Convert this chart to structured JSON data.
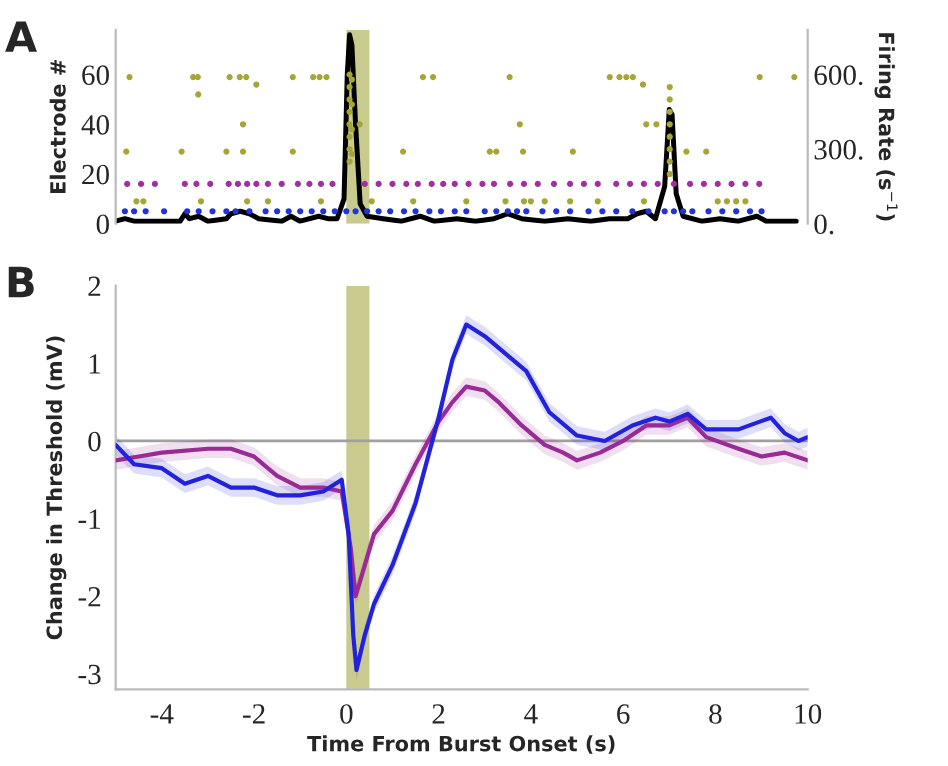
{
  "chart_data": [
    {
      "type": "scatter",
      "title": "A",
      "ylabel": "Electrode #",
      "y2label": "Firing Rate (s$^{−1}$)",
      "xlim": [
        -5,
        10
      ],
      "ylim": [
        0,
        78
      ],
      "yticks": [
        0,
        20,
        40,
        60
      ],
      "y2lim": [
        0,
        780
      ],
      "y2ticks": [
        {
          "value": 0,
          "label": "0."
        },
        {
          "value": 300,
          "label": "300."
        },
        {
          "value": 600,
          "label": "600."
        }
      ],
      "tick_labels": "y",
      "marker": "circle",
      "bands": [
        {
          "axis": "x",
          "from": 0,
          "to": 0.5,
          "color": "#c9ca8e"
        }
      ],
      "series": [
        {
          "type": "scatter",
          "color": "#a6a636",
          "x": [
            -4.7,
            -3.32,
            -3.22,
            -2.53,
            -2.31,
            -2.17,
            -1.16,
            -0.72,
            -0.58,
            -0.43,
            1.66,
            1.88,
            3.54,
            5.71,
            5.92,
            6.07,
            6.21,
            8.96,
            9.71,
            -4.77,
            -3.57,
            -2.6,
            -2.24,
            -1.16,
            1.23,
            3.11,
            3.25,
            3.83,
            4.91,
            7.37,
            7.8,
            -2.24,
            0.29,
            3.76,
            6.5,
            6.72,
            -3.21,
            -1.95,
            6.43,
            0.07,
            0.07,
            0.07,
            0.07,
            0.07,
            0.07,
            0.07,
            0.07,
            0.12,
            0.12,
            0.12,
            0.12,
            7.01,
            7.01,
            7.01,
            7.01,
            7.01,
            7.01,
            7.01,
            7.01,
            -4.55,
            -4.4,
            -3.15,
            -2.15,
            -1.7,
            -0.55,
            0.55,
            1.45,
            2.6,
            3.45,
            3.85,
            4.0,
            4.3,
            4.85,
            5.45,
            6.45,
            8.05,
            8.25,
            8.45,
            8.65
          ],
          "values": [
            59,
            59,
            59,
            59,
            59,
            59,
            59,
            59,
            59,
            59,
            59,
            59,
            59,
            59,
            59,
            59,
            59,
            59,
            59,
            29,
            29,
            29,
            29,
            29,
            29,
            29,
            29,
            29,
            29,
            29,
            29,
            40,
            40,
            40,
            40,
            40,
            52,
            56,
            56,
            25,
            30,
            35,
            40,
            45,
            50,
            55,
            60,
            28,
            38,
            48,
            58,
            20,
            25,
            30,
            35,
            40,
            45,
            50,
            55,
            9,
            9,
            9,
            9,
            9,
            9,
            9,
            9,
            9,
            9,
            9,
            9,
            9,
            9,
            9,
            9,
            9,
            9,
            9,
            9
          ]
        },
        {
          "type": "scatter",
          "color": "#a0309e",
          "x": [
            -4.75,
            -4.45,
            -4.15,
            -3.5,
            -3.25,
            -2.95,
            -2.55,
            -2.35,
            -2.15,
            -1.95,
            -1.7,
            -1.4,
            -1.05,
            -0.8,
            -0.55,
            -0.3,
            0.4,
            0.7,
            1.0,
            1.3,
            1.55,
            1.85,
            2.1,
            2.35,
            2.65,
            2.95,
            3.2,
            3.55,
            3.85,
            4.15,
            4.5,
            4.85,
            5.15,
            5.45,
            5.85,
            6.15,
            6.45,
            6.75,
            7.1,
            7.45,
            7.75,
            8.05,
            8.35,
            8.65,
            8.95
          ],
          "values": [
            16,
            16,
            16,
            16,
            16,
            16,
            16,
            16,
            16,
            16,
            16,
            16,
            16,
            16,
            16,
            16,
            16,
            16,
            16,
            16,
            16,
            16,
            16,
            16,
            16,
            16,
            16,
            16,
            16,
            16,
            16,
            16,
            16,
            16,
            16,
            16,
            16,
            16,
            16,
            16,
            16,
            16,
            16,
            16,
            16
          ]
        },
        {
          "type": "scatter",
          "color": "#2232d8",
          "x": [
            -4.8,
            -4.6,
            -4.35,
            -3.95,
            -3.45,
            -3.2,
            -2.9,
            -2.6,
            -2.4,
            -2.1,
            -1.75,
            -1.5,
            -1.25,
            -1.0,
            -0.75,
            -0.5,
            -0.25,
            0.0,
            0.2,
            0.45,
            0.7,
            0.95,
            1.25,
            1.5,
            1.8,
            2.05,
            2.35,
            2.6,
            3.0,
            3.25,
            3.5,
            3.7,
            3.9,
            4.25,
            4.55,
            4.85,
            5.25,
            5.55,
            5.85,
            6.2,
            6.55,
            6.9,
            7.1,
            7.3,
            7.5,
            7.85,
            8.15,
            8.45,
            8.75,
            9.0
          ],
          "values": [
            5,
            5,
            5,
            5,
            5,
            5,
            5,
            5,
            5,
            5,
            5,
            5,
            5,
            5,
            5,
            5,
            5,
            5,
            5,
            5,
            5,
            5,
            5,
            5,
            5,
            5,
            5,
            5,
            5,
            5,
            5,
            5,
            5,
            5,
            5,
            5,
            5,
            5,
            5,
            5,
            5,
            5,
            5,
            5,
            5,
            5,
            5,
            5,
            5,
            5
          ]
        },
        {
          "type": "line",
          "axis": "y2",
          "marker": "none",
          "color": "#000000",
          "x": [
            -5,
            -4.8,
            -4.6,
            -4.2,
            -3.6,
            -3.5,
            -3.4,
            -3.2,
            -3.0,
            -2.6,
            -2.5,
            -2.3,
            -2.1,
            -1.9,
            -1.4,
            -1.2,
            -1.0,
            -0.6,
            -0.4,
            -0.2,
            -0.05,
            0.02,
            0.07,
            0.12,
            0.2,
            0.3,
            0.45,
            0.8,
            1.2,
            1.6,
            1.9,
            2.4,
            2.8,
            3.2,
            3.5,
            3.8,
            4.3,
            4.8,
            5.3,
            5.7,
            6.1,
            6.3,
            6.5,
            6.7,
            6.9,
            7.0,
            7.06,
            7.15,
            7.3,
            7.7,
            8.1,
            8.5,
            8.9,
            9.1,
            9.5,
            9.75
          ],
          "values": [
            10,
            20,
            10,
            10,
            10,
            40,
            20,
            30,
            10,
            20,
            40,
            50,
            40,
            20,
            10,
            30,
            10,
            30,
            20,
            20,
            100,
            600,
            760,
            720,
            400,
            80,
            30,
            20,
            10,
            30,
            10,
            20,
            10,
            20,
            40,
            20,
            10,
            20,
            10,
            20,
            20,
            40,
            50,
            20,
            150,
            460,
            440,
            120,
            30,
            10,
            20,
            10,
            30,
            10,
            10,
            10
          ]
        }
      ]
    },
    {
      "type": "line",
      "title": "B",
      "xlabel": "Time From Burst Onset (s)",
      "ylabel": "Change in Threshold (mV)",
      "xlim": [
        -5,
        10
      ],
      "xticks": [
        -4,
        -2,
        0,
        2,
        4,
        6,
        8,
        10
      ],
      "ylim": [
        -3.2,
        2
      ],
      "yticks": [
        -3,
        -2,
        -1,
        0,
        1,
        2
      ],
      "line_style": "solid",
      "ref_lines": [
        {
          "axis": "y",
          "value": 0,
          "color": "#a0a0a0"
        }
      ],
      "bands": [
        {
          "axis": "x",
          "from": 0,
          "to": 0.5,
          "color": "#c9ca8e"
        }
      ],
      "series": [
        {
          "color": "#9a2a96",
          "x": [
            -5,
            -4.5,
            -4,
            -3,
            -2.5,
            -2,
            -1.5,
            -1,
            -0.5,
            -0.1,
            0.1,
            0.2,
            0.4,
            0.6,
            1,
            1.5,
            2,
            2.3,
            2.6,
            3,
            3.3,
            3.8,
            4.3,
            4.7,
            5.0,
            5.5,
            6.0,
            6.5,
            7.0,
            7.4,
            7.8,
            8.5,
            9.0,
            9.5,
            10
          ],
          "values": [
            -0.25,
            -0.2,
            -0.15,
            -0.1,
            -0.1,
            -0.2,
            -0.45,
            -0.6,
            -0.6,
            -0.65,
            -1.4,
            -2.0,
            -1.6,
            -1.2,
            -0.9,
            -0.3,
            0.25,
            0.5,
            0.7,
            0.65,
            0.5,
            0.2,
            -0.05,
            -0.15,
            -0.25,
            -0.15,
            0.0,
            0.2,
            0.2,
            0.3,
            0.05,
            -0.1,
            -0.2,
            -0.15,
            -0.25
          ],
          "lower": [
            -0.37,
            -0.32,
            -0.27,
            -0.22,
            -0.22,
            -0.32,
            -0.57,
            -0.72,
            -0.72,
            -0.77,
            -1.52,
            -2.12,
            -1.72,
            -1.32,
            -1.02,
            -0.42,
            0.13,
            0.38,
            0.58,
            0.53,
            0.38,
            0.08,
            -0.17,
            -0.27,
            -0.37,
            -0.27,
            -0.12,
            0.08,
            0.08,
            0.18,
            -0.07,
            -0.22,
            -0.32,
            -0.27,
            -0.37
          ],
          "upper": [
            -0.13,
            -0.08,
            -0.03,
            0.02,
            0.02,
            -0.08,
            -0.33,
            -0.48,
            -0.48,
            -0.53,
            -1.28,
            -1.88,
            -1.48,
            -1.08,
            -0.78,
            -0.18,
            0.37,
            0.62,
            0.82,
            0.77,
            0.62,
            0.32,
            0.07,
            -0.03,
            -0.13,
            -0.03,
            0.12,
            0.32,
            0.32,
            0.42,
            0.17,
            0.02,
            -0.08,
            -0.03,
            -0.13
          ]
        },
        {
          "color": "#2222dd",
          "x": [
            -5,
            -4.6,
            -4,
            -3.5,
            -3,
            -2.5,
            -2,
            -1.5,
            -1,
            -0.5,
            -0.1,
            0.05,
            0.15,
            0.22,
            0.4,
            0.6,
            1,
            1.5,
            2,
            2.3,
            2.6,
            3,
            3.5,
            3.9,
            4.4,
            5,
            5.6,
            6.2,
            6.7,
            7.0,
            7.4,
            7.8,
            8.5,
            9.2,
            9.5,
            9.8,
            10
          ],
          "values": [
            -0.05,
            -0.3,
            -0.35,
            -0.55,
            -0.45,
            -0.6,
            -0.6,
            -0.7,
            -0.7,
            -0.65,
            -0.5,
            -1.2,
            -2.5,
            -2.95,
            -2.5,
            -2.1,
            -1.6,
            -0.8,
            0.3,
            1.05,
            1.5,
            1.35,
            1.1,
            0.9,
            0.37,
            0.07,
            0.0,
            0.2,
            0.3,
            0.25,
            0.35,
            0.15,
            0.15,
            0.3,
            0.1,
            0.0,
            0.05
          ],
          "lower": [
            -0.17,
            -0.42,
            -0.47,
            -0.67,
            -0.57,
            -0.72,
            -0.72,
            -0.82,
            -0.82,
            -0.77,
            -0.62,
            -1.32,
            -2.62,
            -3.07,
            -2.62,
            -2.22,
            -1.72,
            -0.92,
            0.18,
            0.93,
            1.38,
            1.23,
            0.98,
            0.78,
            0.25,
            -0.05,
            -0.12,
            0.08,
            0.18,
            0.13,
            0.23,
            0.03,
            0.03,
            0.18,
            -0.02,
            -0.12,
            -0.07
          ],
          "upper": [
            0.07,
            -0.18,
            -0.23,
            -0.43,
            -0.33,
            -0.48,
            -0.48,
            -0.58,
            -0.58,
            -0.53,
            -0.38,
            -1.08,
            -2.38,
            -2.83,
            -2.38,
            -1.98,
            -1.48,
            -0.68,
            0.42,
            1.17,
            1.62,
            1.47,
            1.22,
            1.02,
            0.49,
            0.19,
            0.12,
            0.32,
            0.42,
            0.37,
            0.47,
            0.27,
            0.27,
            0.42,
            0.22,
            0.12,
            0.17
          ]
        }
      ]
    }
  ]
}
